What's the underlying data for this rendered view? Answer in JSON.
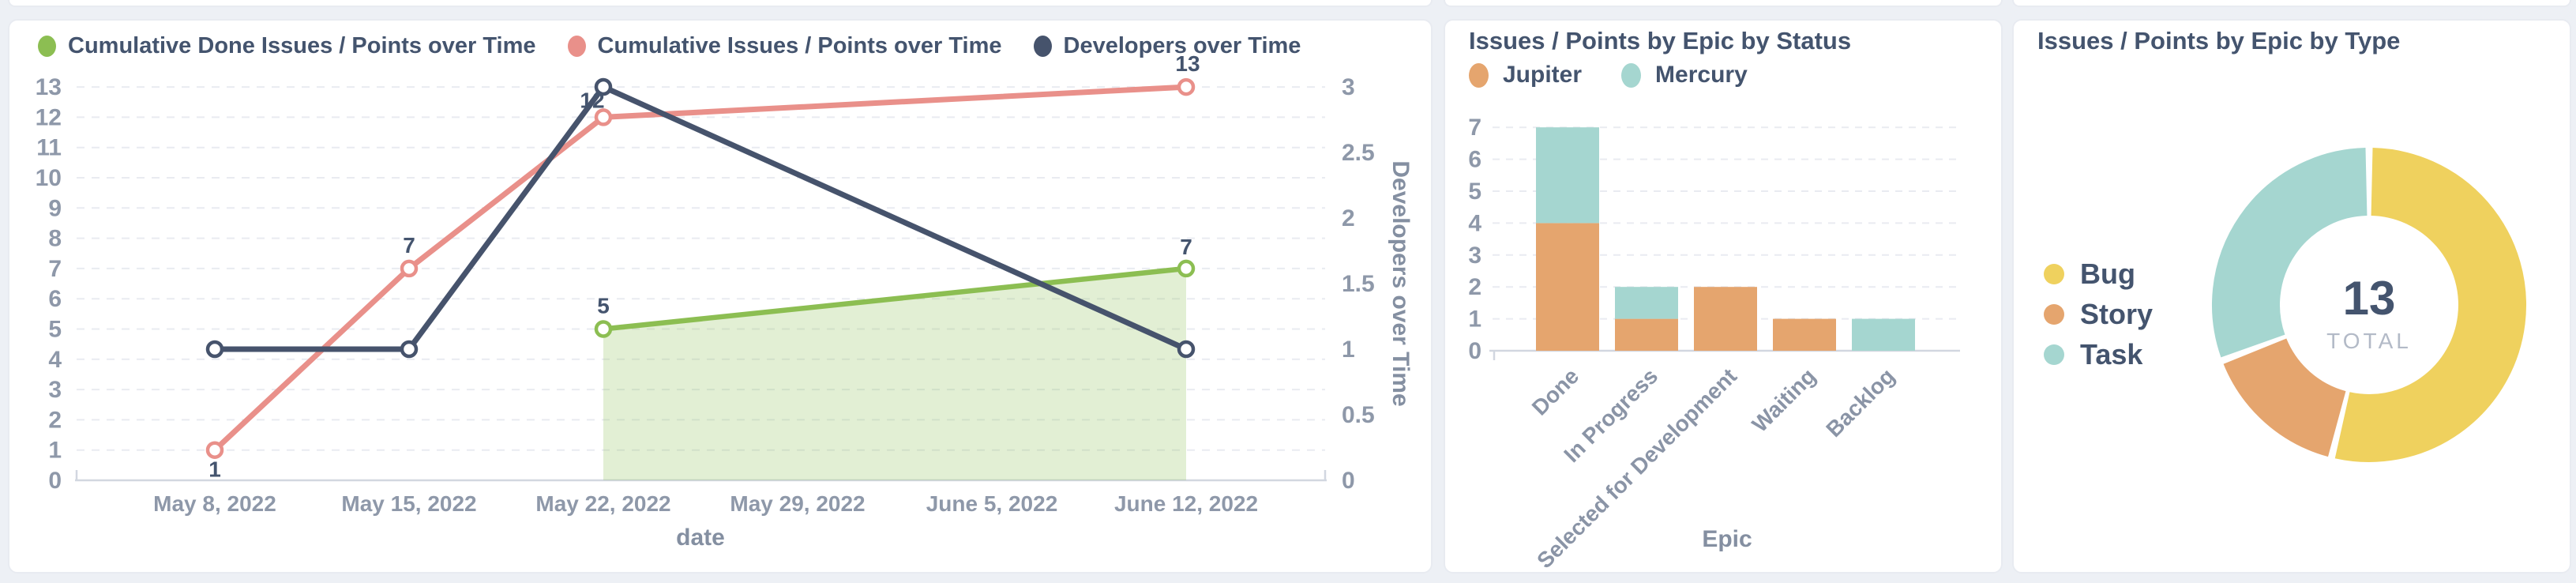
{
  "page": {
    "background": "#EDF0F5"
  },
  "colors": {
    "navy_text": "#44546E",
    "tick_gray": "#8E98A9",
    "axis_title_gray": "#848FA1",
    "cat_label_gray": "#8A94A6",
    "grid": "#E9EBF1",
    "axis_line": "#D2D7E0",
    "green": "#8CBE52",
    "green_area": "rgba(140,190,82,0.25)",
    "salmon": "#E9908A",
    "navy": "#46536C",
    "orange": "#E5A56E",
    "teal": "#A5D6D0",
    "yellow": "#EFD15E",
    "total_gray": "#B3BAC7"
  },
  "chart_data": [
    {
      "type": "line",
      "title": "",
      "xlabel": "date",
      "x_ticks": [
        "May 8, 2022",
        "May 15, 2022",
        "May 22, 2022",
        "May 29, 2022",
        "June 5, 2022",
        "June 12, 2022"
      ],
      "left_axis": {
        "min": 0,
        "max": 13,
        "tick_step": 1
      },
      "right_axis": {
        "label": "Developers over Time",
        "min": 0,
        "max": 3,
        "tick_step": 0.5
      },
      "grid": "dashed",
      "legend_position": "top-left",
      "series": [
        {
          "name": "Cumulative Done Issues / Points over Time",
          "color_key": "green",
          "axis": "left",
          "area": true,
          "points": [
            {
              "tick": 2,
              "value": 5
            },
            {
              "tick": 5,
              "value": 7
            }
          ],
          "point_labels": [
            "5",
            "7"
          ]
        },
        {
          "name": "Cumulative Issues / Points over Time",
          "color_key": "salmon",
          "axis": "left",
          "area": false,
          "points": [
            {
              "tick": 0,
              "value": 1
            },
            {
              "tick": 1,
              "value": 7
            },
            {
              "tick": 2,
              "value": 12
            },
            {
              "tick": 5,
              "value": 13
            }
          ],
          "point_labels": [
            "1",
            "7",
            "12",
            "13"
          ]
        },
        {
          "name": "Developers over Time",
          "color_key": "navy",
          "axis": "right",
          "area": false,
          "points": [
            {
              "tick": 0,
              "value": 1
            },
            {
              "tick": 1,
              "value": 1
            },
            {
              "tick": 2,
              "value": 3
            },
            {
              "tick": 5,
              "value": 1
            }
          ],
          "point_labels": []
        }
      ]
    },
    {
      "type": "bar",
      "stacked": true,
      "title": "Issues / Points by Epic by Status",
      "xlabel": "Epic",
      "categories": [
        "Done",
        "In Progress",
        "Selected for Development",
        "Waiting",
        "Backlog"
      ],
      "y_axis": {
        "min": 0,
        "max": 7,
        "tick_step": 1
      },
      "grid": "dashed",
      "legend_position": "top-left",
      "series": [
        {
          "name": "Jupiter",
          "color_key": "orange",
          "values": [
            4,
            1,
            2,
            1,
            0
          ]
        },
        {
          "name": "Mercury",
          "color_key": "teal",
          "values": [
            3,
            1,
            0,
            0,
            1
          ]
        }
      ]
    },
    {
      "type": "pie",
      "donut": true,
      "title": "Issues / Points by Epic by Type",
      "total_value": "13",
      "total_label": "TOTAL",
      "legend_position": "left",
      "slices": [
        {
          "name": "Bug",
          "color_key": "yellow",
          "value": 7
        },
        {
          "name": "Story",
          "color_key": "orange",
          "value": 2
        },
        {
          "name": "Task",
          "color_key": "teal",
          "value": 4
        }
      ]
    }
  ]
}
